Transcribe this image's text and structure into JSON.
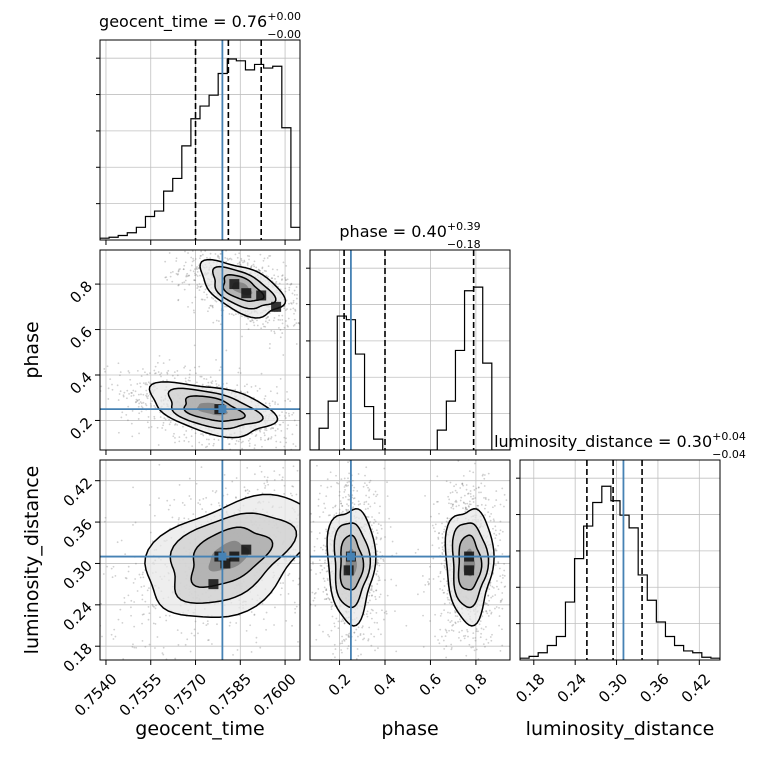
{
  "chart_data": {
    "type": "corner",
    "colors": {
      "truth": "#4682b4",
      "hist": "#000000",
      "grid": "#c0c0c0",
      "points": "#777777"
    },
    "parameters": [
      {
        "name": "geocent_time",
        "range": [
          0.7538,
          0.7605
        ],
        "ticks": [
          0.754,
          0.7555,
          0.757,
          0.7585,
          0.76
        ],
        "tick_labels": [
          "0.7540",
          "0.7555",
          "0.7570",
          "0.7585",
          "0.7600"
        ],
        "truth": 0.7579,
        "quantiles": [
          0.757,
          0.7581,
          0.7592
        ],
        "title_value": "0.76",
        "title_plus": "+0.00",
        "title_minus": "−0.00",
        "hist": [
          0.01,
          0.015,
          0.025,
          0.04,
          0.07,
          0.13,
          0.16,
          0.27,
          0.34,
          0.52,
          0.67,
          0.74,
          0.8,
          0.92,
          1.0,
          0.99,
          0.94,
          0.97,
          0.95,
          0.96,
          0.62,
          0.07
        ]
      },
      {
        "name": "phase",
        "range": [
          0.07,
          0.95
        ],
        "ticks": [
          0.2,
          0.4,
          0.6,
          0.8
        ],
        "tick_labels": [
          "0.2",
          "0.4",
          "0.6",
          "0.8"
        ],
        "truth": 0.25,
        "quantiles": [
          0.22,
          0.4,
          0.79
        ],
        "title_value": "0.40",
        "title_plus": "+0.39",
        "title_minus": "−0.18",
        "hist": [
          0.0,
          0.12,
          0.27,
          0.74,
          0.72,
          0.53,
          0.24,
          0.06,
          0.0,
          0.0,
          0.0,
          0.0,
          0.0,
          0.0,
          0.11,
          0.27,
          0.55,
          0.88,
          0.9,
          0.48,
          0.0,
          0.0
        ]
      },
      {
        "name": "luminosity_distance",
        "range": [
          0.16,
          0.45
        ],
        "ticks": [
          0.18,
          0.24,
          0.3,
          0.36,
          0.42
        ],
        "tick_labels": [
          "0.18",
          "0.24",
          "0.30",
          "0.36",
          "0.42"
        ],
        "truth": 0.31,
        "quantiles": [
          0.257,
          0.295,
          0.337
        ],
        "title_value": "0.30",
        "title_plus": "+0.04",
        "title_minus": "−0.04",
        "hist": [
          0.01,
          0.02,
          0.04,
          0.08,
          0.13,
          0.32,
          0.56,
          0.74,
          0.87,
          0.96,
          0.88,
          0.8,
          0.73,
          0.47,
          0.33,
          0.21,
          0.13,
          0.08,
          0.05,
          0.04,
          0.015,
          0.01
        ]
      }
    ],
    "pairs": [
      {
        "x": "geocent_time",
        "y": "phase",
        "clusters": [
          {
            "cx": 0.75855,
            "cy": 0.78,
            "sx": 0.0006,
            "sy": 0.045,
            "slope": -0.6
          },
          {
            "cx": 0.75755,
            "cy": 0.25,
            "sx": 0.0009,
            "sy": 0.045,
            "slope": -0.5
          }
        ],
        "dark_cells": [
          {
            "x": 0.7587,
            "y": 0.76
          },
          {
            "x": 0.7592,
            "y": 0.75
          },
          {
            "x": 0.7583,
            "y": 0.8
          },
          {
            "x": 0.7597,
            "y": 0.7
          },
          {
            "x": 0.7578,
            "y": 0.25
          }
        ]
      },
      {
        "x": "geocent_time",
        "y": "luminosity_distance",
        "clusters": [
          {
            "cx": 0.7581,
            "cy": 0.31,
            "sx": 0.0012,
            "sy": 0.035,
            "slope": 0.45
          }
        ],
        "dark_cells": [
          {
            "x": 0.758,
            "y": 0.3
          },
          {
            "x": 0.7583,
            "y": 0.31
          },
          {
            "x": 0.7576,
            "y": 0.27
          },
          {
            "x": 0.7587,
            "y": 0.32
          },
          {
            "x": 0.7578,
            "y": 0.31
          }
        ]
      },
      {
        "x": "phase",
        "y": "luminosity_distance",
        "clusters": [
          {
            "cx": 0.25,
            "cy": 0.3,
            "sx": 0.045,
            "sy": 0.036,
            "slope": 0.0
          },
          {
            "cx": 0.77,
            "cy": 0.3,
            "sx": 0.045,
            "sy": 0.036,
            "slope": 0.0
          }
        ],
        "dark_cells": [
          {
            "x": 0.25,
            "y": 0.31
          },
          {
            "x": 0.24,
            "y": 0.29
          },
          {
            "x": 0.77,
            "y": 0.29
          },
          {
            "x": 0.77,
            "y": 0.31
          }
        ]
      }
    ]
  }
}
